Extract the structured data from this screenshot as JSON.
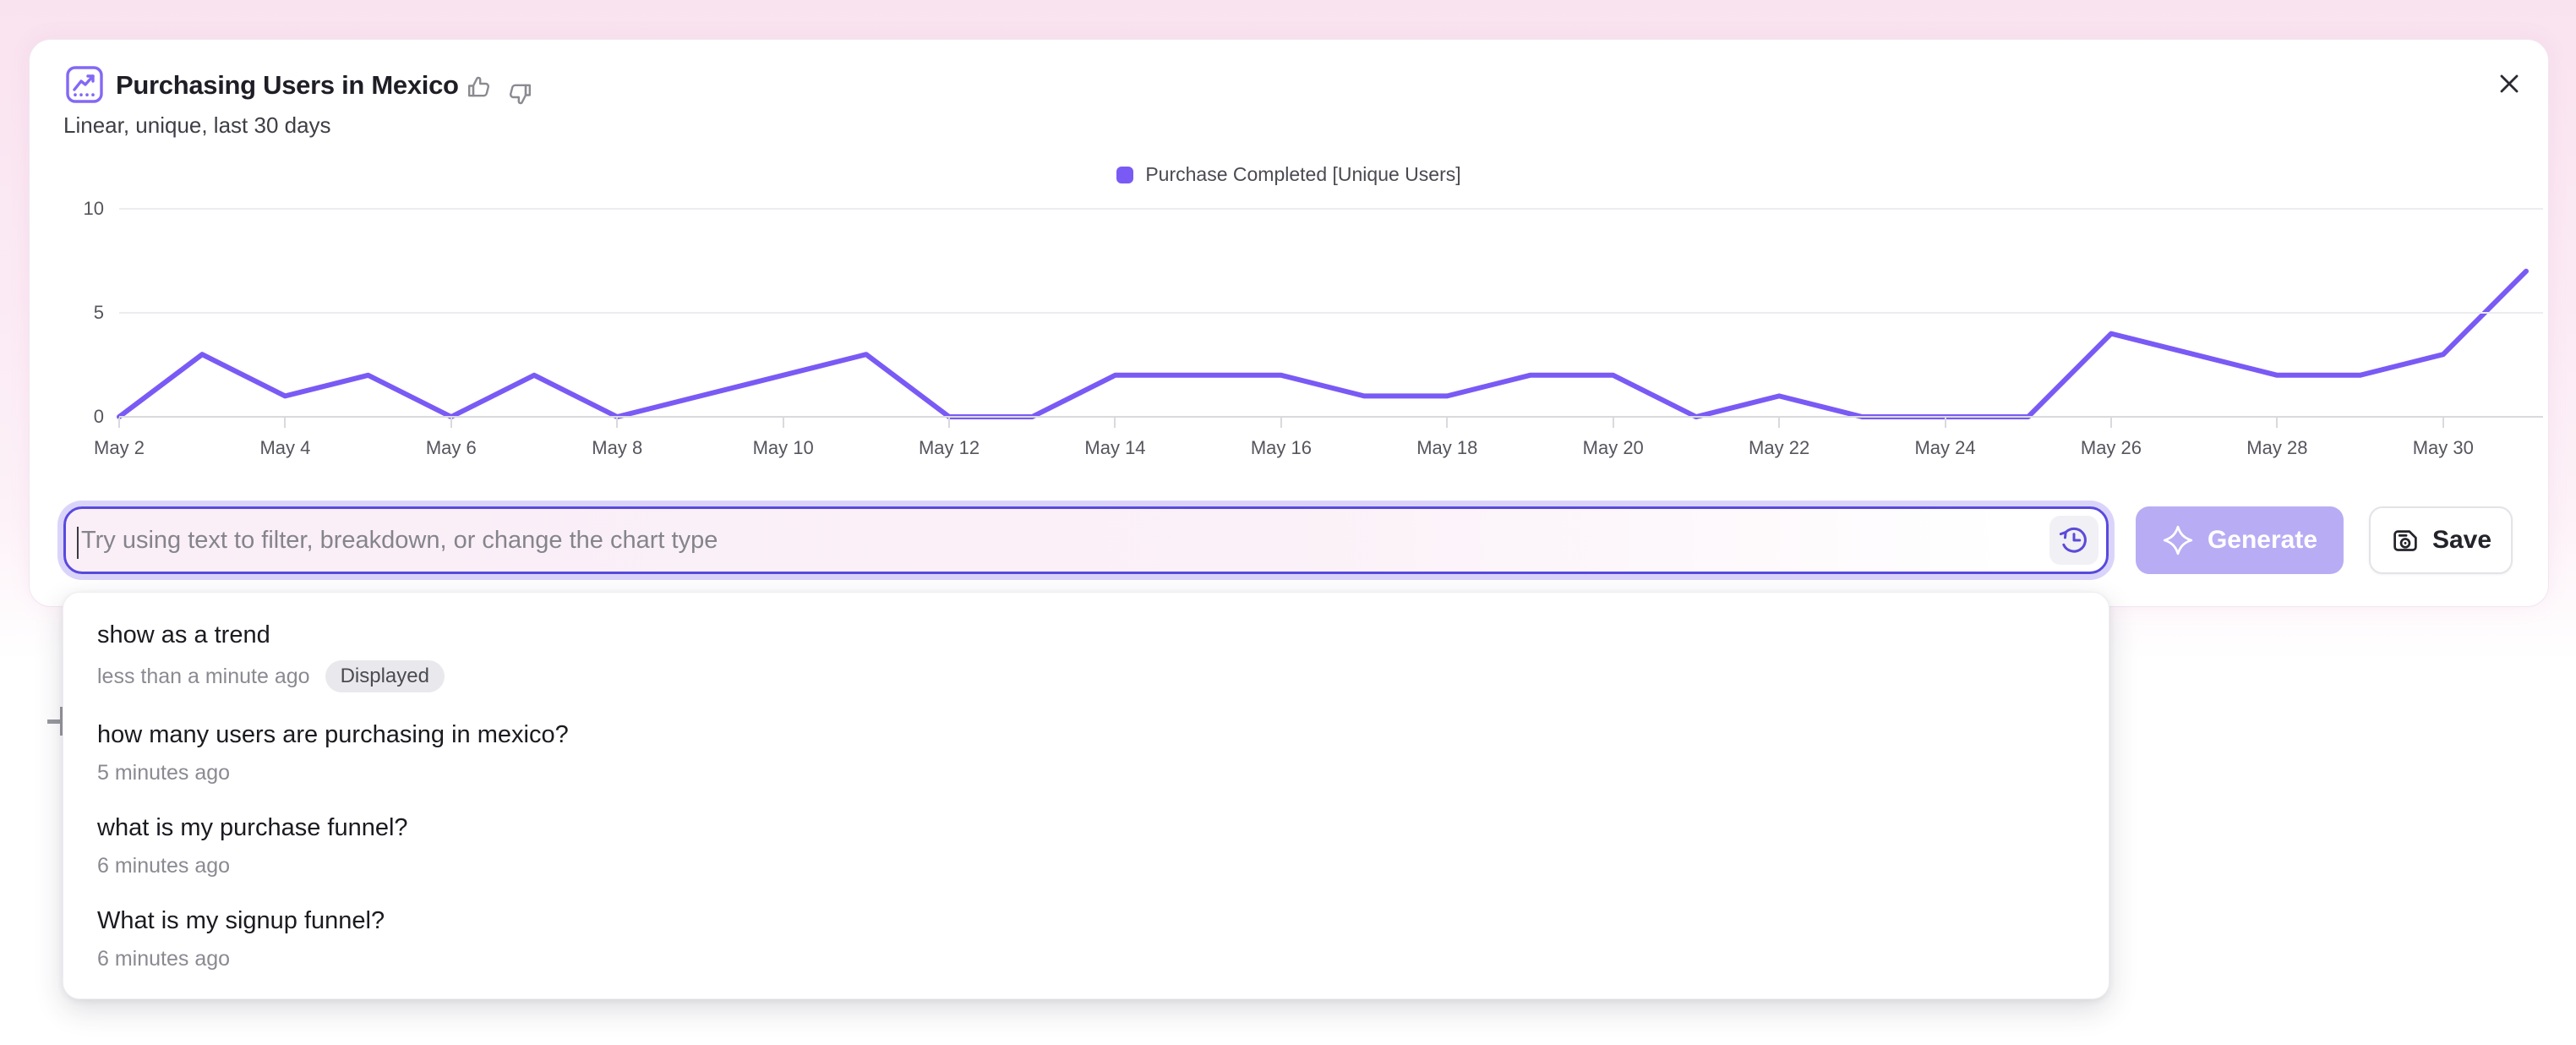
{
  "header": {
    "title": "Purchasing Users in Mexico",
    "subtitle": "Linear, unique, last 30 days"
  },
  "icons": {
    "header": "line-chart-icon",
    "feedback": [
      "thumb-up-icon",
      "thumb-down-icon"
    ],
    "close": "close-icon",
    "history": "history-clock-icon",
    "generate": "sparkle-icon",
    "save": "floppy-disk-icon",
    "background": "plus-icon"
  },
  "chart_data": {
    "type": "line",
    "title": "Purchasing Users in Mexico",
    "xlabel": "",
    "ylabel": "",
    "x": [
      "May 2",
      "May 3",
      "May 4",
      "May 5",
      "May 6",
      "May 7",
      "May 8",
      "May 9",
      "May 10",
      "May 11",
      "May 12",
      "May 13",
      "May 14",
      "May 15",
      "May 16",
      "May 17",
      "May 18",
      "May 19",
      "May 20",
      "May 21",
      "May 22",
      "May 23",
      "May 24",
      "May 25",
      "May 26",
      "May 27",
      "May 28",
      "May 29",
      "May 30",
      "May 31"
    ],
    "x_tick_labels": [
      "May 2",
      "May 4",
      "May 6",
      "May 8",
      "May 10",
      "May 12",
      "May 14",
      "May 16",
      "May 18",
      "May 20",
      "May 22",
      "May 24",
      "May 26",
      "May 28",
      "May 30"
    ],
    "series": [
      {
        "name": "Purchase Completed [Unique Users]",
        "color": "#7A5AF5",
        "values": [
          0,
          3,
          1,
          2,
          0,
          2,
          0,
          1,
          2,
          3,
          0,
          0,
          2,
          2,
          2,
          1,
          1,
          2,
          2,
          0,
          1,
          0,
          0,
          0,
          4,
          3,
          2,
          2,
          3,
          7
        ]
      }
    ],
    "ylim": [
      0,
      10
    ],
    "yticks": [
      0,
      5,
      10
    ],
    "grid": true,
    "legend_position": "top-center"
  },
  "prompt_bar": {
    "placeholder": "Try using text to filter, breakdown, or change the chart type",
    "generate_label": "Generate",
    "save_label": "Save"
  },
  "history_dropdown": {
    "items": [
      {
        "title": "show as a trend",
        "time": "less than a minute ago",
        "badge": "Displayed"
      },
      {
        "title": "how many users are purchasing in mexico?",
        "time": "5 minutes ago"
      },
      {
        "title": "what is my purchase funnel?",
        "time": "6 minutes ago"
      },
      {
        "title": "What is my signup funnel?",
        "time": "6 minutes ago"
      }
    ]
  },
  "colors": {
    "accent_purple": "#7A5AF5",
    "input_border": "#5849DE",
    "generate_bg": "#B8ADF4",
    "backdrop_pink": "#F9E3EF",
    "badge_bg": "#E9E9ED",
    "gridline": "#ECECF0"
  }
}
